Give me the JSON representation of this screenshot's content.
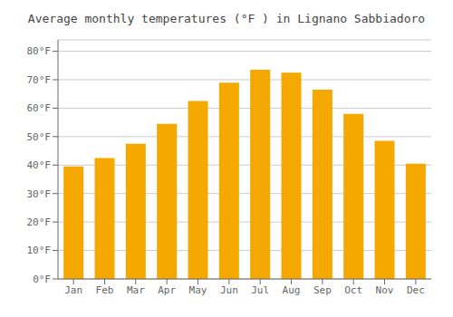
{
  "chart_data": {
    "type": "bar",
    "title": "Average monthly temperatures (°F ) in Lignano Sabbiadoro",
    "categories": [
      "Jan",
      "Feb",
      "Mar",
      "Apr",
      "May",
      "Jun",
      "Jul",
      "Aug",
      "Sep",
      "Oct",
      "Nov",
      "Dec"
    ],
    "values": [
      39.5,
      42.5,
      47.5,
      54.5,
      62.5,
      69.0,
      73.5,
      72.5,
      66.5,
      58.0,
      48.5,
      40.5
    ],
    "color": "#F5A800",
    "ylim": [
      0,
      84
    ],
    "yticks": [
      {
        "value": 0,
        "label": "0°F"
      },
      {
        "value": 10,
        "label": "10°F"
      },
      {
        "value": 20,
        "label": "20°F"
      },
      {
        "value": 30,
        "label": "30°F"
      },
      {
        "value": 40,
        "label": "40°F"
      },
      {
        "value": 50,
        "label": "50°F"
      },
      {
        "value": 60,
        "label": "60°F"
      },
      {
        "value": 70,
        "label": "70°F"
      },
      {
        "value": 80,
        "label": "80°F"
      }
    ],
    "grid": true
  }
}
